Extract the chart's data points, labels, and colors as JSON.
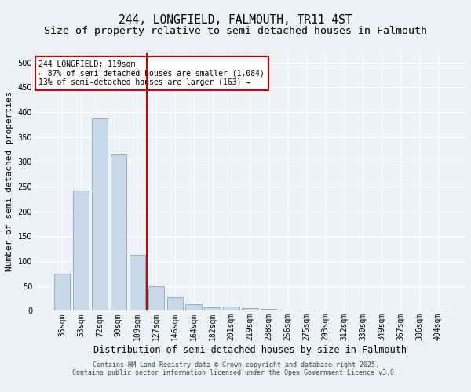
{
  "title1": "244, LONGFIELD, FALMOUTH, TR11 4ST",
  "title2": "Size of property relative to semi-detached houses in Falmouth",
  "xlabel": "Distribution of semi-detached houses by size in Falmouth",
  "ylabel": "Number of semi-detached properties",
  "categories": [
    "35sqm",
    "53sqm",
    "72sqm",
    "90sqm",
    "109sqm",
    "127sqm",
    "146sqm",
    "164sqm",
    "182sqm",
    "201sqm",
    "219sqm",
    "238sqm",
    "256sqm",
    "275sqm",
    "293sqm",
    "312sqm",
    "330sqm",
    "349sqm",
    "367sqm",
    "386sqm",
    "404sqm"
  ],
  "values": [
    75,
    242,
    388,
    315,
    113,
    50,
    28,
    14,
    7,
    9,
    6,
    4,
    2,
    2,
    1,
    0,
    0,
    0,
    0,
    0,
    3
  ],
  "bar_color": "#c8d8e8",
  "bar_edge_color": "#7799bb",
  "vline_x": 4.5,
  "vline_color": "#cc0000",
  "annotation_title": "244 LONGFIELD: 119sqm",
  "annotation_line1": "← 87% of semi-detached houses are smaller (1,084)",
  "annotation_line2": "13% of semi-detached houses are larger (163) →",
  "annotation_box_color": "#cc0000",
  "ylim": [
    0,
    520
  ],
  "yticks": [
    0,
    50,
    100,
    150,
    200,
    250,
    300,
    350,
    400,
    450,
    500
  ],
  "footer1": "Contains HM Land Registry data © Crown copyright and database right 2025.",
  "footer2": "Contains public sector information licensed under the Open Government Licence v3.0.",
  "bg_color": "#eef2f7",
  "plot_bg_color": "#eef2f7",
  "grid_color": "#ffffff",
  "title_fontsize": 10.5,
  "subtitle_fontsize": 9.5,
  "tick_fontsize": 7,
  "ylabel_fontsize": 8,
  "xlabel_fontsize": 8.5,
  "footer_fontsize": 6,
  "annot_fontsize": 7
}
